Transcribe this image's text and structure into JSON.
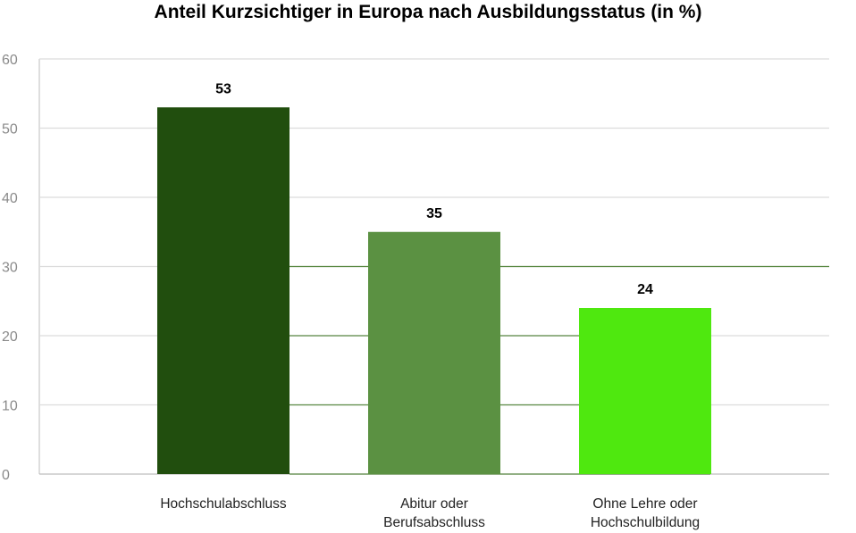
{
  "chart_data": {
    "type": "bar",
    "title": "Anteil Kurzsichtiger in Europa nach Ausbildungsstatus (in %)",
    "categories": [
      [
        "Hochschulabschluss"
      ],
      [
        "Abitur oder",
        "Berufsabschluss"
      ],
      [
        "Ohne Lehre oder",
        "Hochschulbildung"
      ]
    ],
    "values": [
      53,
      35,
      24
    ],
    "data_labels": [
      "53",
      "35",
      "24"
    ],
    "colors": [
      "#214e0e",
      "#5b9142",
      "#4fe80f"
    ],
    "ylim": [
      0,
      60
    ],
    "yticks": [
      0,
      10,
      20,
      30,
      40,
      50,
      60
    ],
    "xlabel": "",
    "ylabel": "",
    "grid": true,
    "legend": "none"
  }
}
